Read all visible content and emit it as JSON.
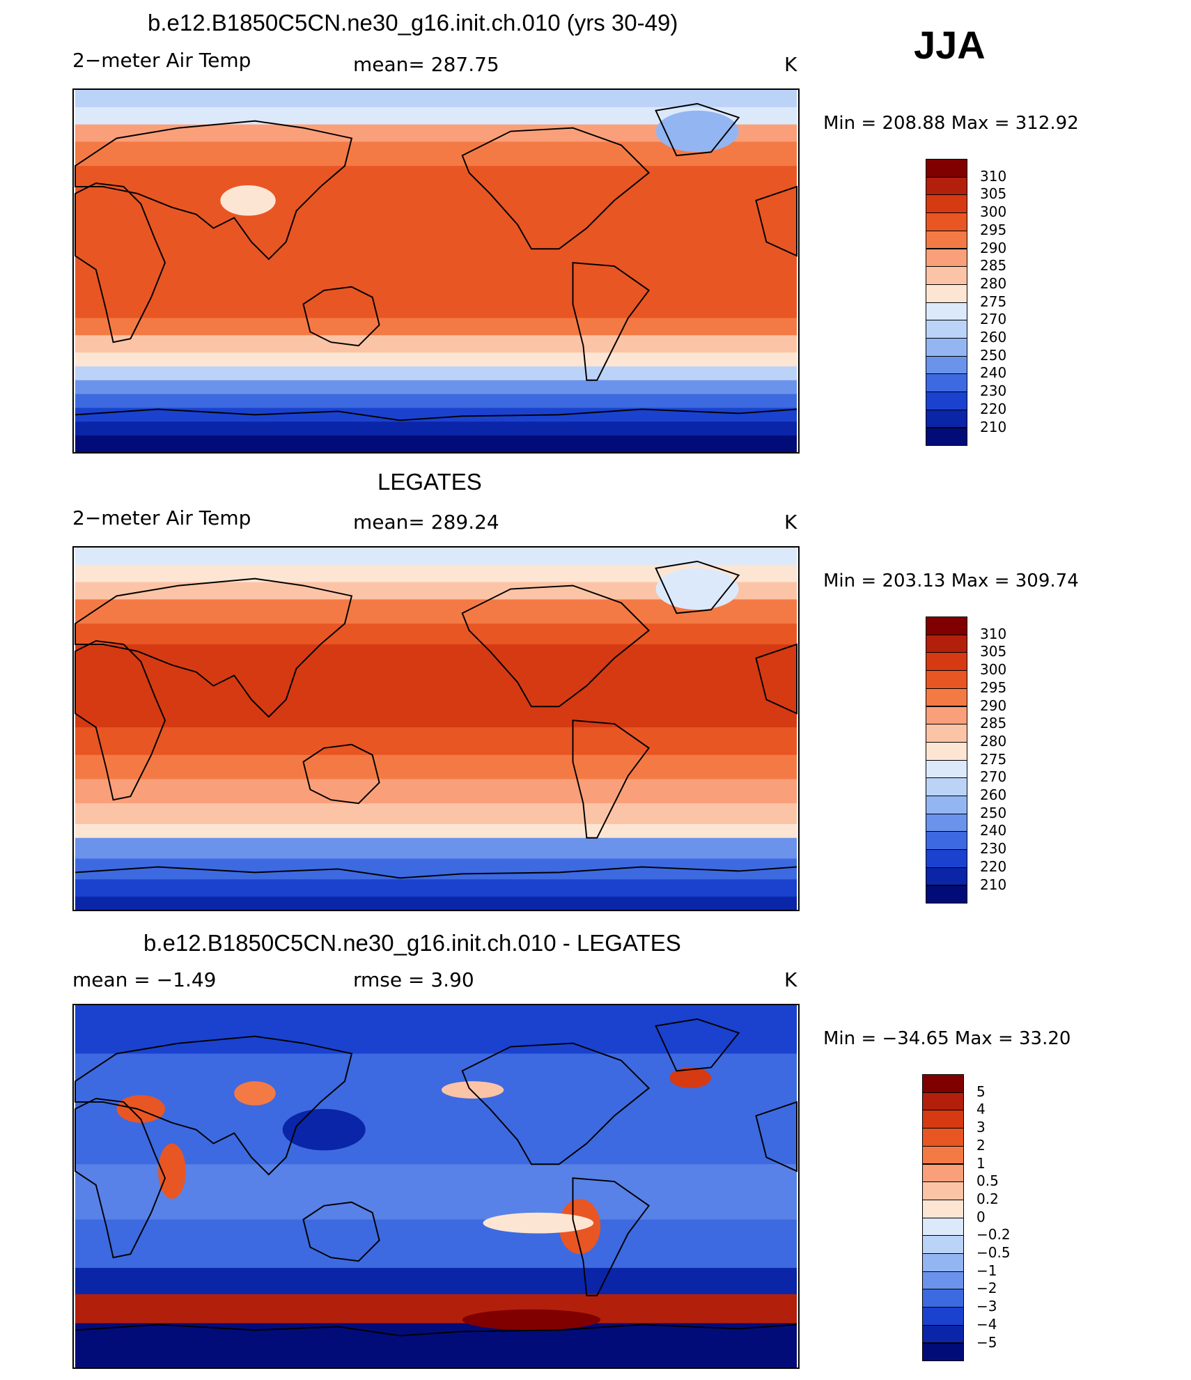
{
  "season": "JJA",
  "panels": [
    {
      "title": "b.e12.B1850C5CN.ne30_g16.init.ch.010 (yrs 30-49)",
      "left_label": "2−meter Air Temp",
      "center_label": "mean=  287.75",
      "units": "K",
      "minmax": "Min  =  208.88  Max  =  312.92",
      "colorbar": {
        "labels": [
          "310",
          "305",
          "300",
          "295",
          "290",
          "285",
          "280",
          "275",
          "270",
          "260",
          "250",
          "240",
          "230",
          "220",
          "210"
        ],
        "colors": [
          "#800000",
          "#b2200c",
          "#d63a12",
          "#e85624",
          "#f47a45",
          "#f9a07a",
          "#fcc4a6",
          "#fde5d3",
          "#dce9fb",
          "#bcd3f8",
          "#93b6f2",
          "#6b93eb",
          "#3d6ae0",
          "#1a42cf",
          "#0a25a8",
          "#020c78"
        ]
      },
      "map_style": "model"
    },
    {
      "title": "LEGATES",
      "left_label": "2−meter Air Temp",
      "center_label": "mean=  289.24",
      "units": "K",
      "minmax": "Min  =  203.13  Max  =  309.74",
      "colorbar": {
        "labels": [
          "310",
          "305",
          "300",
          "295",
          "290",
          "285",
          "280",
          "275",
          "270",
          "260",
          "250",
          "240",
          "230",
          "220",
          "210"
        ],
        "colors": [
          "#800000",
          "#b2200c",
          "#d63a12",
          "#e85624",
          "#f47a45",
          "#f9a07a",
          "#fcc4a6",
          "#fde5d3",
          "#dce9fb",
          "#bcd3f8",
          "#93b6f2",
          "#6b93eb",
          "#3d6ae0",
          "#1a42cf",
          "#0a25a8",
          "#020c78"
        ]
      },
      "map_style": "obs"
    },
    {
      "title": "b.e12.B1850C5CN.ne30_g16.init.ch.010 - LEGATES",
      "left_label": "mean =    −1.49",
      "center_label": "rmse =     3.90",
      "units": "K",
      "minmax": "Min  =  −34.65  Max  =    33.20",
      "colorbar": {
        "labels": [
          "5",
          "4",
          "3",
          "2",
          "1",
          "0.5",
          "0.2",
          "0",
          "−0.2",
          "−0.5",
          "−1",
          "−2",
          "−3",
          "−4",
          "−5"
        ],
        "colors": [
          "#800000",
          "#b2200c",
          "#d63a12",
          "#e85624",
          "#f47a45",
          "#f9a07a",
          "#fcc4a6",
          "#fde5d3",
          "#dce9fb",
          "#bcd3f8",
          "#93b6f2",
          "#6b93eb",
          "#3d6ae0",
          "#1a42cf",
          "#0a25a8",
          "#020c78"
        ]
      },
      "map_style": "diff"
    }
  ]
}
